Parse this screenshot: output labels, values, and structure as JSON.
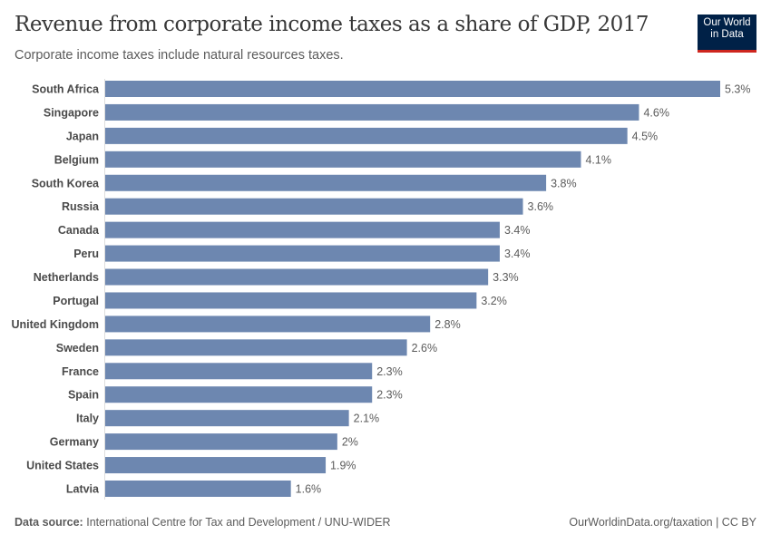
{
  "header": {
    "title": "Revenue from corporate income taxes as a share of GDP, 2017",
    "subtitle": "Corporate income taxes include natural resources taxes.",
    "logo_text": "Our World in Data"
  },
  "footer": {
    "source_label": "Data source:",
    "source": "International Centre for Tax and Development / UNU-WIDER",
    "link": "OurWorldinData.org/taxation | CC BY"
  },
  "colors": {
    "bar": "#6d87b0",
    "text": "#5b5b5b"
  },
  "chart_data": {
    "type": "bar",
    "orientation": "horizontal",
    "title": "Revenue from corporate income taxes as a share of GDP, 2017",
    "categories": [
      "South Africa",
      "Singapore",
      "Japan",
      "Belgium",
      "South Korea",
      "Russia",
      "Canada",
      "Peru",
      "Netherlands",
      "Portugal",
      "United Kingdom",
      "Sweden",
      "France",
      "Spain",
      "Italy",
      "Germany",
      "United States",
      "Latvia"
    ],
    "values": [
      5.3,
      4.6,
      4.5,
      4.1,
      3.8,
      3.6,
      3.4,
      3.4,
      3.3,
      3.2,
      2.8,
      2.6,
      2.3,
      2.3,
      2.1,
      2,
      1.9,
      1.6
    ],
    "labels": [
      "5.3%",
      "4.6%",
      "4.5%",
      "4.1%",
      "3.8%",
      "3.6%",
      "3.4%",
      "3.4%",
      "3.3%",
      "3.2%",
      "2.8%",
      "2.6%",
      "2.3%",
      "2.3%",
      "2.1%",
      "2%",
      "1.9%",
      "1.6%"
    ],
    "unit": "%",
    "xlim": [
      0,
      5.3
    ],
    "grid": false
  }
}
